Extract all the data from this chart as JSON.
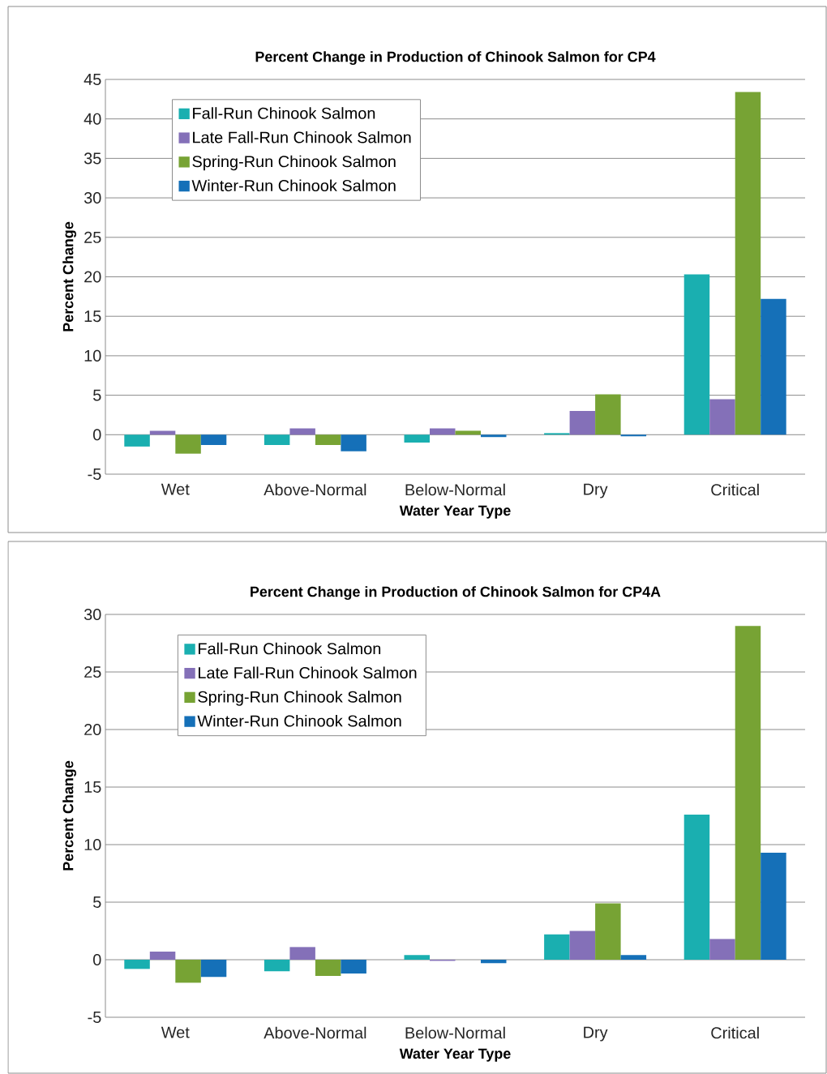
{
  "chart_data": [
    {
      "type": "bar",
      "title": "Percent Change in Production of Chinook Salmon for CP4",
      "xlabel": "Water Year Type",
      "ylabel": "Percent Change",
      "categories": [
        "Wet",
        "Above-Normal",
        "Below-Normal",
        "Dry",
        "Critical"
      ],
      "series": [
        {
          "name": "Fall-Run Chinook Salmon",
          "color": "#1aafb0",
          "values": [
            -1.5,
            -1.3,
            -1.0,
            0.2,
            20.3
          ]
        },
        {
          "name": "Late Fall-Run Chinook Salmon",
          "color": "#8470b8",
          "values": [
            0.5,
            0.8,
            0.8,
            3.0,
            4.5
          ]
        },
        {
          "name": "Spring-Run Chinook Salmon",
          "color": "#77a334",
          "values": [
            -2.4,
            -1.3,
            0.5,
            5.1,
            43.4
          ]
        },
        {
          "name": "Winter-Run Chinook Salmon",
          "color": "#1570b8",
          "values": [
            -1.3,
            -2.1,
            -0.3,
            -0.2,
            17.2
          ]
        }
      ],
      "ylim": [
        -5,
        45
      ],
      "yticks": [
        -5,
        0,
        5,
        10,
        15,
        20,
        25,
        30,
        35,
        40,
        45
      ],
      "grid": "y",
      "legend": "top left"
    },
    {
      "type": "bar",
      "title": "Percent Change in Production of Chinook Salmon for CP4A",
      "xlabel": "Water Year Type",
      "ylabel": "Percent Change",
      "categories": [
        "Wet",
        "Above-Normal",
        "Below-Normal",
        "Dry",
        "Critical"
      ],
      "series": [
        {
          "name": "Fall-Run Chinook Salmon",
          "color": "#1aafb0",
          "values": [
            -0.8,
            -1.0,
            0.4,
            2.2,
            12.6
          ]
        },
        {
          "name": "Late Fall-Run Chinook Salmon",
          "color": "#8470b8",
          "values": [
            0.7,
            1.1,
            -0.1,
            2.5,
            1.8
          ]
        },
        {
          "name": "Spring-Run Chinook Salmon",
          "color": "#77a334",
          "values": [
            -2.0,
            -1.4,
            0.0,
            4.9,
            29.0
          ]
        },
        {
          "name": "Winter-Run Chinook Salmon",
          "color": "#1570b8",
          "values": [
            -1.5,
            -1.2,
            -0.3,
            0.4,
            9.3
          ]
        }
      ],
      "ylim": [
        -5,
        30
      ],
      "yticks": [
        -5,
        0,
        5,
        10,
        15,
        20,
        25,
        30
      ],
      "grid": "y",
      "legend": "top left"
    }
  ]
}
